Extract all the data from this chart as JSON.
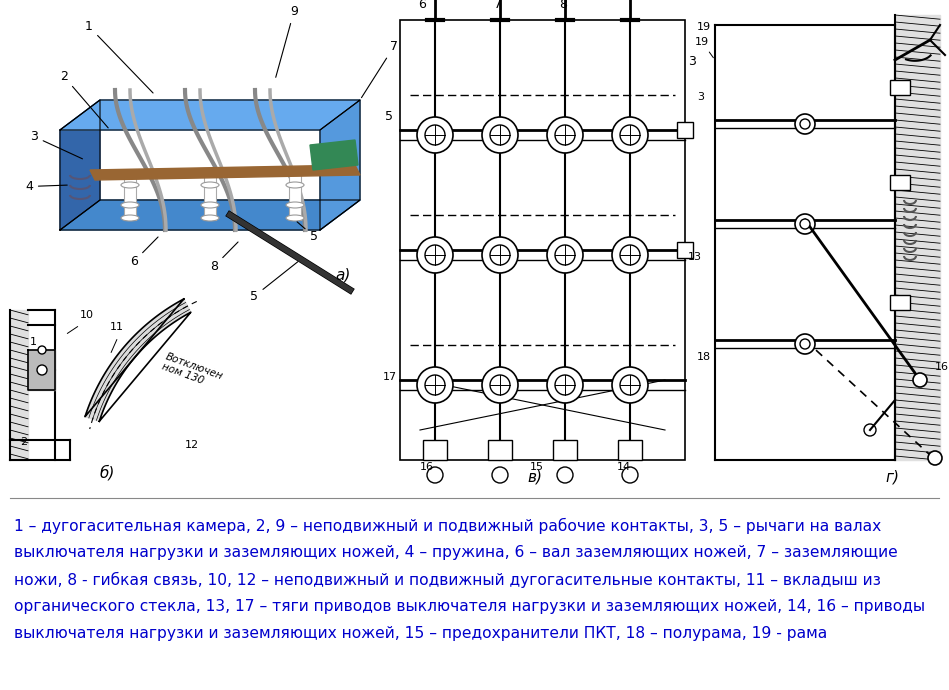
{
  "background_color": "#ffffff",
  "text_lines": [
    "1 – дугогасительная камера, 2, 9 – неподвижный и подвижный рабочие контакты, 3, 5 – рычаги на валах",
    "выключателя нагрузки и заземляющих ножей, 4 – пружина, 6 – вал заземляющих ножей, 7 – заземляющие",
    "ножи, 8 - гибкая связь, 10, 12 – неподвижный и подвижный дугогасительные контакты, 11 – вкладыш из",
    "органического стекла, 13, 17 – тяги приводов выключателя нагрузки и заземляющих ножей, 14, 16 – приводы",
    "выключателя нагрузки и заземляющих ножей, 15 – предохранители ПКТ, 18 – полурама, 19 - рама"
  ],
  "text_color": "#0000cc",
  "text_fontsize": 11.2,
  "fig_width": 9.49,
  "fig_height": 6.9,
  "dpi": 100
}
